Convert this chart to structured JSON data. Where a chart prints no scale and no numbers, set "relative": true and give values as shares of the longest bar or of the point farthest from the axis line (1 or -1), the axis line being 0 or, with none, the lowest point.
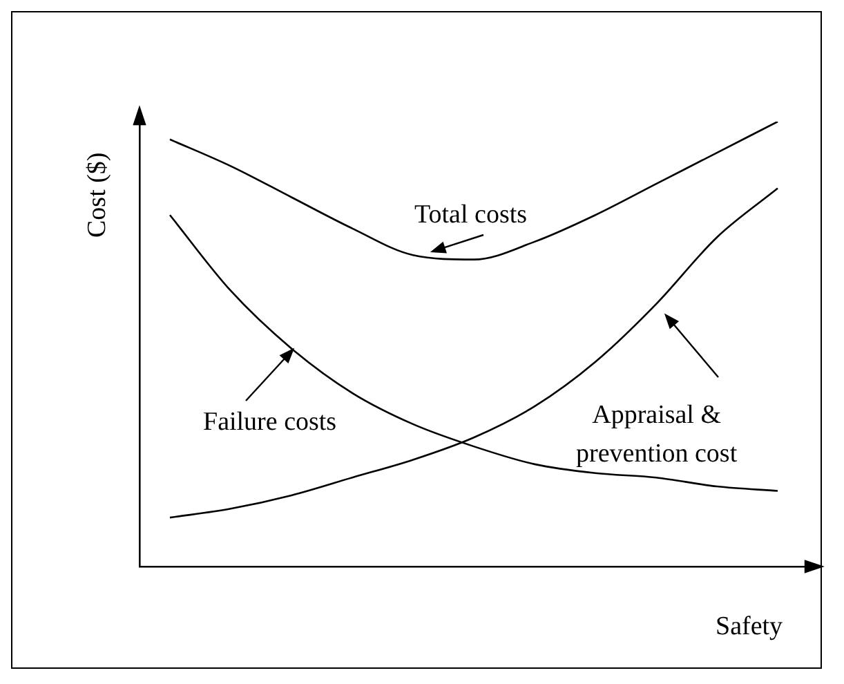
{
  "chart_data": {
    "type": "line",
    "relative": true,
    "xlabel": "Safety",
    "ylabel": "Cost ($)",
    "legend": false,
    "grid": false,
    "marker": "none",
    "line_style": "solid",
    "categories": [
      null,
      null,
      null,
      null,
      null,
      null,
      null,
      null,
      null,
      null,
      null
    ],
    "series": [
      {
        "color": "#000000",
        "values": [
          0.96,
          0.9,
          0.83,
          0.76,
          0.7,
          0.69,
          0.73,
          0.79,
          0.86,
          0.93,
          1
        ]
      },
      {
        "color": "#000000",
        "values": [
          0.79,
          0.62,
          0.49,
          0.39,
          0.32,
          0.27,
          0.23,
          0.21,
          0.2,
          0.18,
          0.17
        ]
      },
      {
        "color": "#000000",
        "values": [
          0.11,
          0.13,
          0.16,
          0.2,
          0.24,
          0.29,
          0.36,
          0.46,
          0.59,
          0.74,
          0.85
        ]
      }
    ],
    "annotations": [
      "Total costs",
      "Failure costs",
      "Appraisal &\nprevention cost"
    ]
  }
}
